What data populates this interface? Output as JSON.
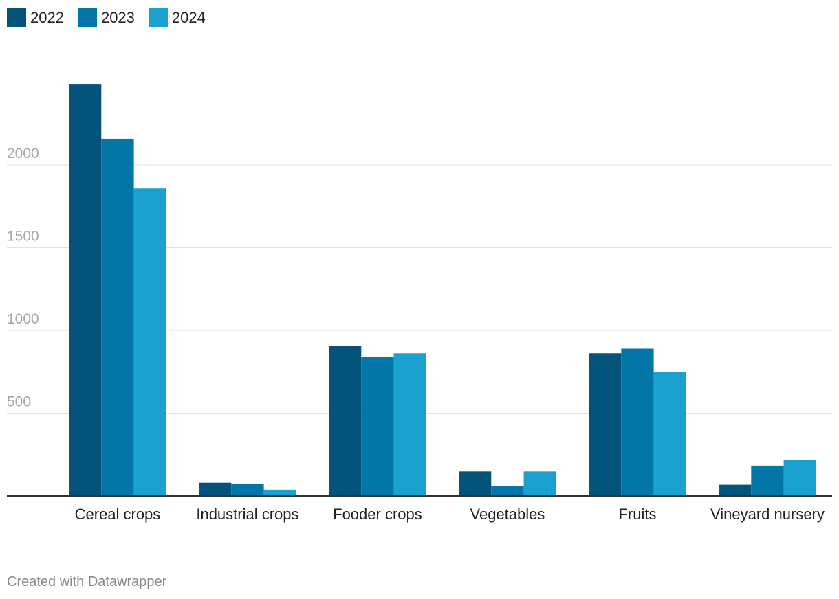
{
  "chart_data": {
    "type": "bar",
    "title": "",
    "xlabel": "",
    "ylabel": "",
    "categories": [
      "Cereal crops",
      "Industrial crops",
      "Fooder crops",
      "Vegetables",
      "Fruits",
      "Vineyard nursery"
    ],
    "series": [
      {
        "name": "2022",
        "color": "#03537a",
        "values": [
          2485,
          80,
          905,
          148,
          862,
          68
        ]
      },
      {
        "name": "2023",
        "color": "#0276a6",
        "values": [
          2158,
          72,
          842,
          58,
          890,
          183
        ]
      },
      {
        "name": "2024",
        "color": "#1ba1cf",
        "values": [
          1858,
          38,
          862,
          148,
          750,
          218
        ]
      }
    ],
    "ylim": [
      0,
      2500
    ],
    "yticks": [
      500,
      1000,
      1500,
      2000
    ],
    "grid": true,
    "legend": "top-left"
  },
  "footer": "Created with Datawrapper"
}
